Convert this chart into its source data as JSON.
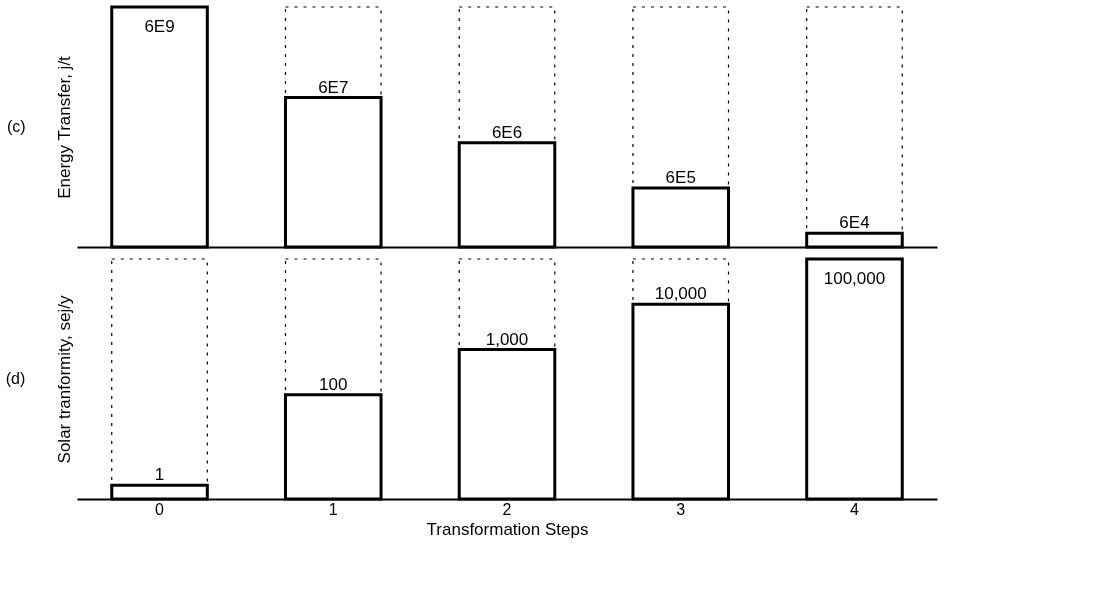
{
  "chart_data": [
    {
      "type": "bar",
      "title": "(c)",
      "ylabel": "Energy Transfer, j/t",
      "log": true,
      "ylim": [
        30000,
        6000000000
      ],
      "tick_labels": false,
      "color": "#000000",
      "categories": [
        "0",
        "1",
        "2",
        "3",
        "4"
      ],
      "values": [
        6000000000,
        60000000,
        6000000,
        600000,
        60000
      ],
      "value_labels": [
        "6E9",
        "6E7",
        "6E6",
        "6E5",
        "6E4"
      ]
    },
    {
      "type": "bar",
      "title": "(d)",
      "ylabel": "Solar tranformity, sej/y",
      "xlabel": "Transformation Steps",
      "log": true,
      "ylim": [
        0.5,
        100000
      ],
      "tick_labels": "x",
      "color": "#000000",
      "categories": [
        "0",
        "1",
        "2",
        "3",
        "4"
      ],
      "values": [
        1,
        100,
        1000,
        10000,
        100000
      ],
      "value_labels": [
        "1",
        "100",
        "1,000",
        "10,000",
        "100,000"
      ]
    }
  ]
}
